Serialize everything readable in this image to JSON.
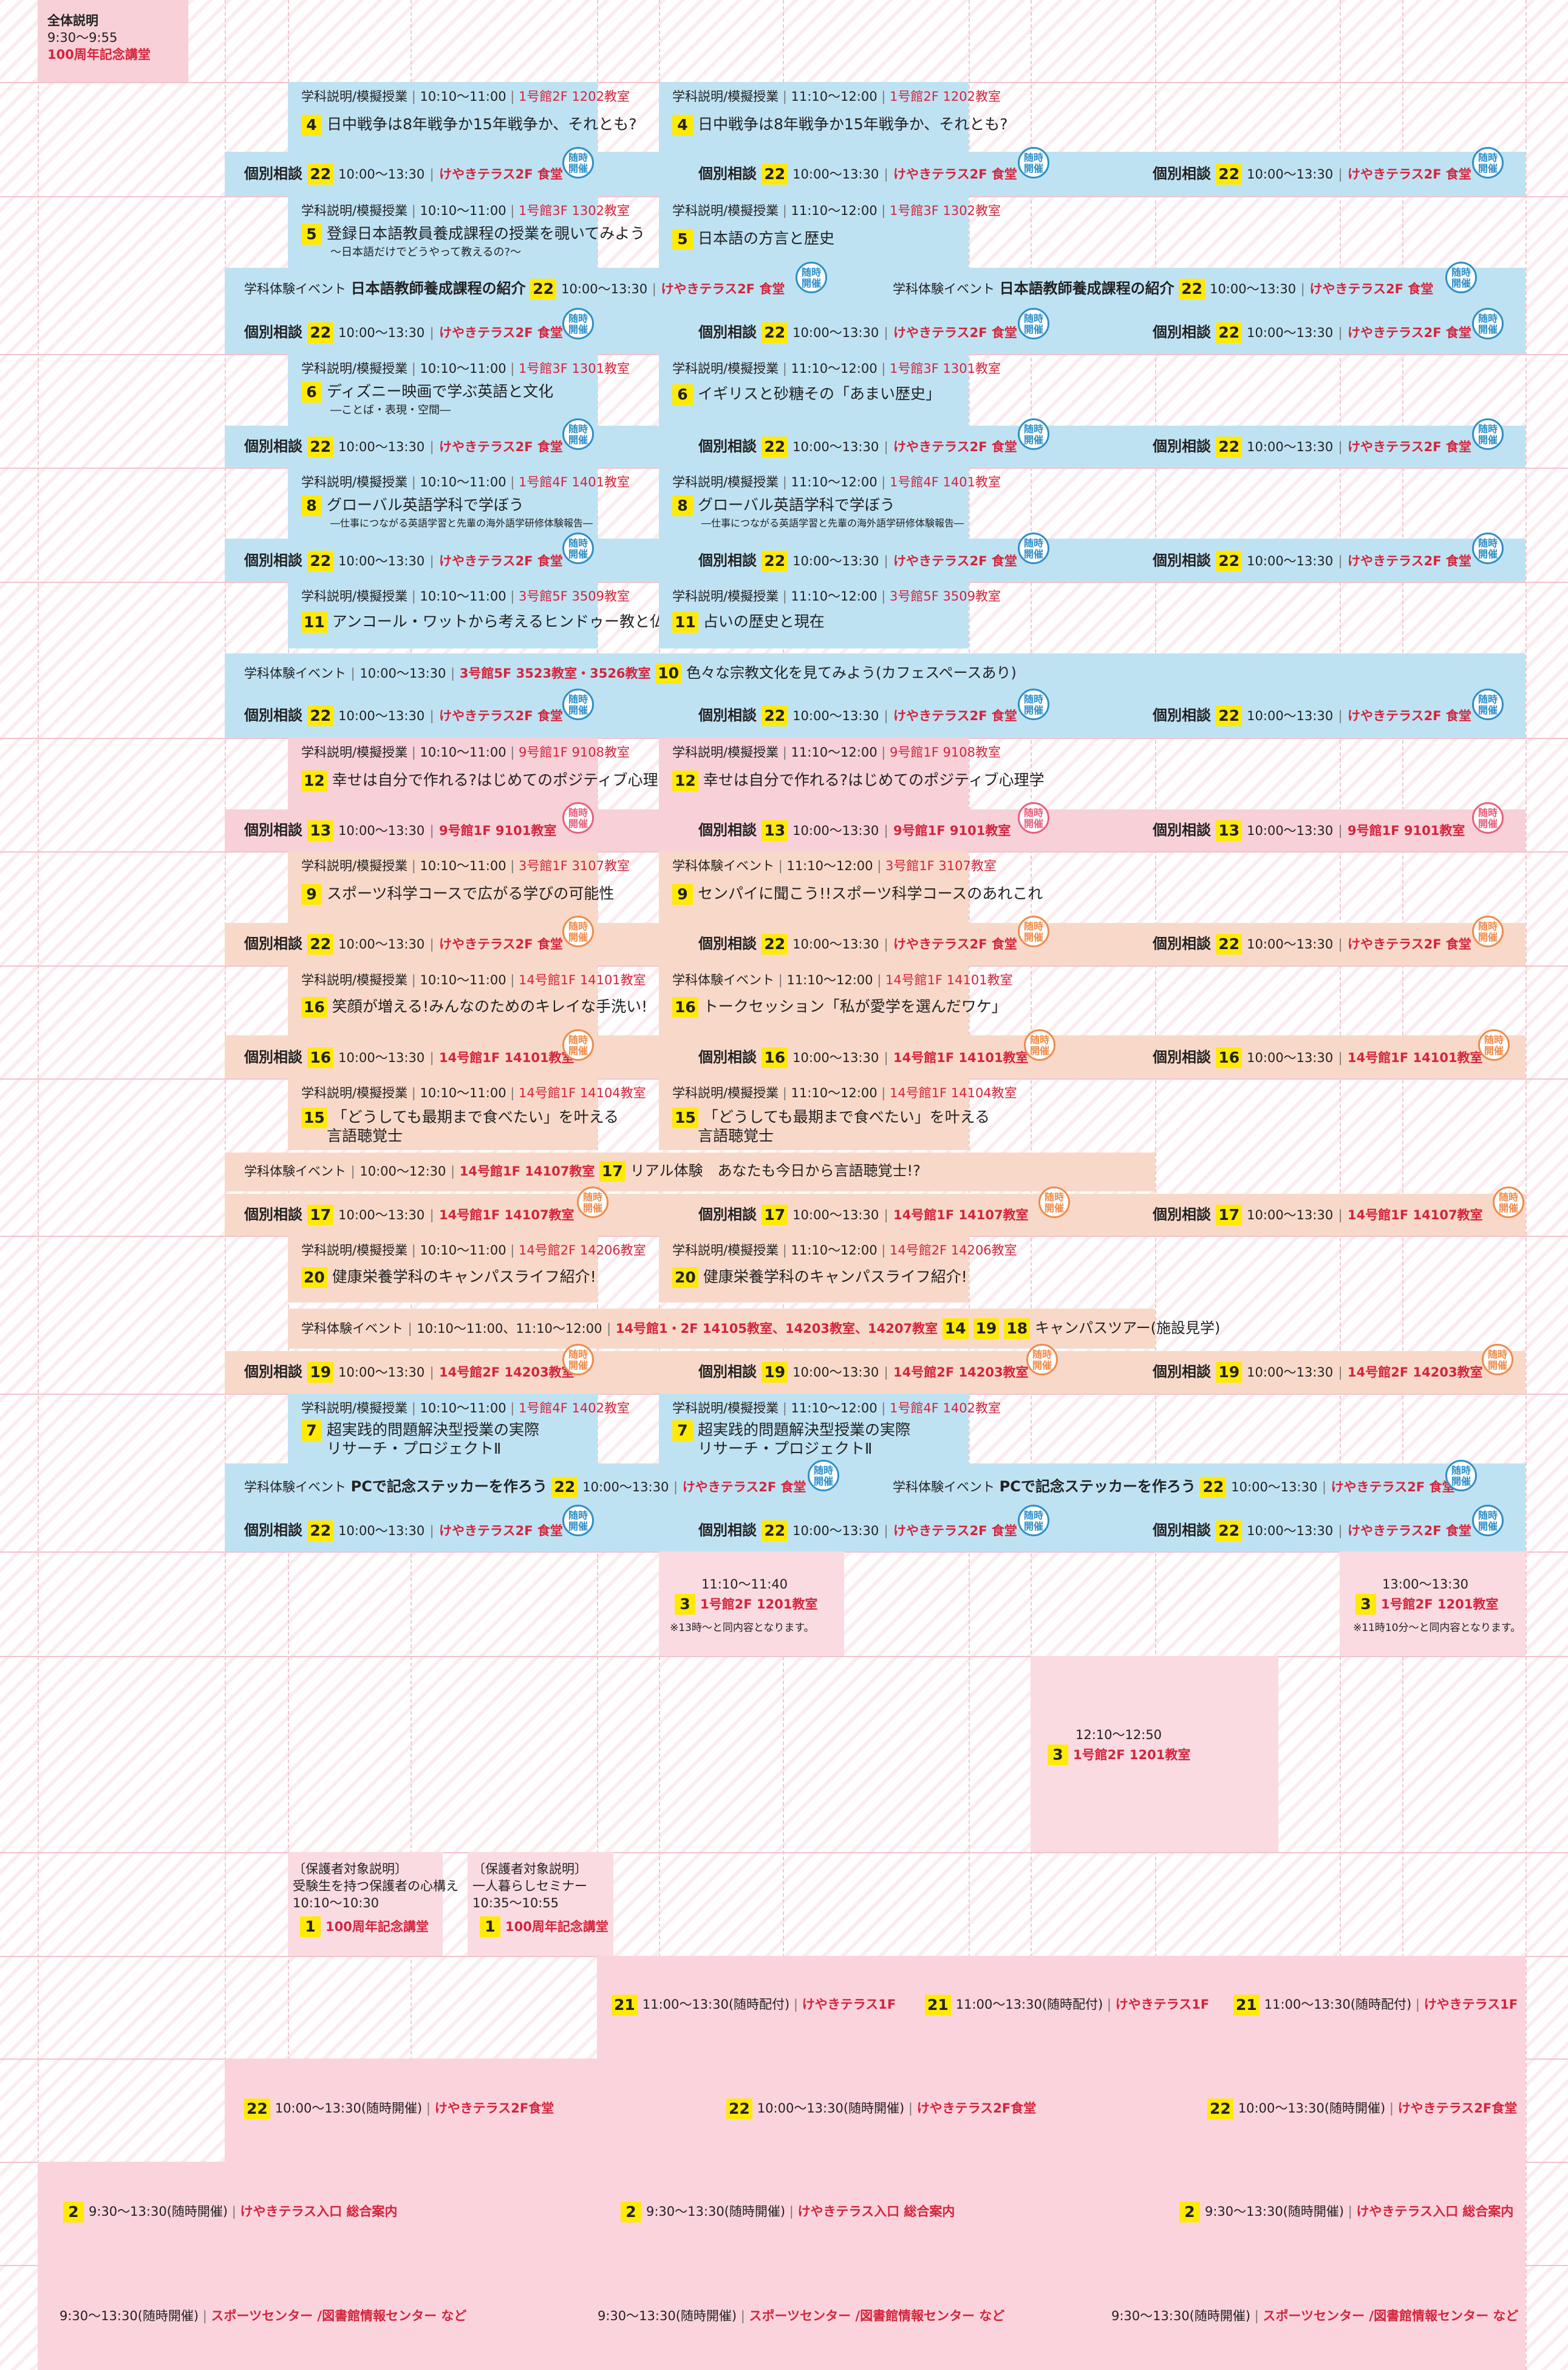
{
  "opening": {
    "label": "全体説明",
    "time": "9:30〜9:55",
    "place": "100周年記念講堂"
  },
  "common": {
    "consult": "個別相談",
    "consult_time": "10:00〜13:30",
    "sep": "|",
    "dining": "けやきテラス2F 食堂",
    "zuiji": "随時開催",
    "lecture": "学科説明/模擬授業",
    "event": "学科体験イベント",
    "t1": "10:10〜11:00",
    "t2": "11:10〜12:00"
  },
  "rows": {
    "r1": {
      "n": "4",
      "p1": "1号館2F 1202教室",
      "p2": "1号館2F 1202教室",
      "title": "日中戦争は8年戦争か15年戦争か、それとも?"
    },
    "r2": {
      "n1": "5",
      "p1": "1号館3F 1302教室",
      "title1": "登録日本語教員養成課程の授業を覗いてみよう",
      "sub1": "〜日本語だけでどうやって教えるの?〜",
      "n2": "5",
      "p2": "1号館3F 1302教室",
      "title2": "日本語の方言と歴史",
      "event_title": "日本語教師養成課程の紹介",
      "event_n": "22"
    },
    "r3": {
      "n": "6",
      "p1": "1号館3F 1301教室",
      "title1": "ディズニー映画で学ぶ英語と文化",
      "sub1": "―ことば・表現・空間―",
      "p2": "1号館3F 1301教室",
      "title2": "イギリスと砂糖その「あまい歴史」"
    },
    "r4": {
      "n": "8",
      "p1": "1号館4F 1401教室",
      "p2": "1号館4F 1401教室",
      "title": "グローバル英語学科で学ぼう",
      "sub": "―仕事につながる英語学習と先輩の海外語学研修体験報告―"
    },
    "r5": {
      "n": "11",
      "p1": "3号館5F 3509教室",
      "title1": "アンコール・ワットから考えるヒンドゥー教と仏教",
      "p2": "3号館5F 3509教室",
      "title2": "占いの歴史と現在",
      "event_place": "3号館5F 3523教室・3526教室",
      "event_n": "10",
      "event_title": "色々な宗教文化を見てみよう(カフェスペースあり)"
    },
    "r6": {
      "n": "12",
      "p1": "9号館1F 9108教室",
      "p2": "9号館1F 9108教室",
      "title": "幸せは自分で作れる?はじめてのポジティブ心理学",
      "consult_n": "13",
      "consult_place": "9号館1F 9101教室"
    },
    "r7": {
      "n": "9",
      "p1": "3号館1F 3107教室",
      "title1": "スポーツ科学コースで広がる学びの可能性",
      "time2": "11:10〜12:00",
      "p2": "3号館1F 3107教室",
      "title2": "センパイに聞こう!!スポーツ科学コースのあれこれ"
    },
    "r8": {
      "n": "16",
      "p1": "14号館1F 14101教室",
      "title1": "笑顔が増える!みんなのためのキレイな手洗い!",
      "p2": "14号館1F 14101教室",
      "title2": "トークセッション「私が愛学を選んだワケ」",
      "consult_place": "14号館1F 14101教室"
    },
    "r9": {
      "n": "15",
      "p1": "14号館1F 14104教室",
      "p2": "14号館1F 14104教室",
      "title": "「どうしても最期まで食べたい」を叶える",
      "title_b": "言語聴覚士",
      "event_time": "10:00〜12:30",
      "event_place": "14号館1F 14107教室",
      "event_n": "17",
      "event_title": "リアル体験　あなたも今日から言語聴覚士!?",
      "consult_n": "17",
      "consult_place": "14号館1F 14107教室"
    },
    "r10": {
      "n": "20",
      "p1": "14号館2F 14206教室",
      "p2": "14号館2F 14206教室",
      "title": "健康栄養学科のキャンパスライフ紹介!",
      "event_time": "10:10〜11:00、11:10〜12:00",
      "event_place": "14号館1・2F 14105教室、14203教室、14207教室",
      "event_n1": "14",
      "event_n2": "19",
      "event_n3": "18",
      "event_title": "キャンパスツアー(施設見学)",
      "consult_n": "19",
      "consult_place": "14号館2F 14203教室"
    },
    "r11": {
      "n": "7",
      "p1": "1号館4F 1402教室",
      "p2": "1号館4F 1402教室",
      "title": "超実践的問題解決型授業の実際",
      "title_b": "リサーチ・プロジェクトⅡ",
      "event_title": "PCで記念ステッカーを作ろう",
      "event_n": "22"
    }
  },
  "lunch": {
    "a": {
      "time": "11:10〜11:40",
      "n": "3",
      "place": "1号館2F 1201教室",
      "note": "※13時〜と同内容となります。"
    },
    "b": {
      "time": "13:00〜13:30",
      "n": "3",
      "place": "1号館2F 1201教室",
      "note": "※11時10分〜と同内容となります。"
    },
    "c": {
      "time": "12:10〜12:50",
      "n": "3",
      "place": "1号館2F 1201教室"
    }
  },
  "parents": {
    "a": {
      "label": "〔保護者対象説明〕",
      "title": "受験生を持つ保護者の心構え",
      "time": "10:10〜10:30",
      "n": "1",
      "place": "100周年記念講堂"
    },
    "b": {
      "label": "〔保護者対象説明〕",
      "title": "一人暮らしセミナー",
      "time": "10:35〜10:55",
      "n": "1",
      "place": "100周年記念講堂"
    }
  },
  "band21": {
    "n": "21",
    "time": "11:00〜13:30(随時配付)",
    "place": "けやきテラス1F"
  },
  "band22": {
    "n": "22",
    "time": "10:00〜13:30(随時開催)",
    "place": "けやきテラス2F食堂"
  },
  "band2": {
    "n": "2",
    "time": "9:30〜13:30(随時開催)",
    "place": "けやきテラス入口 総合案内"
  },
  "bandx": {
    "time": "9:30〜13:30(随時開催)",
    "place": "スポーツセンター /図書館情報センター など"
  }
}
